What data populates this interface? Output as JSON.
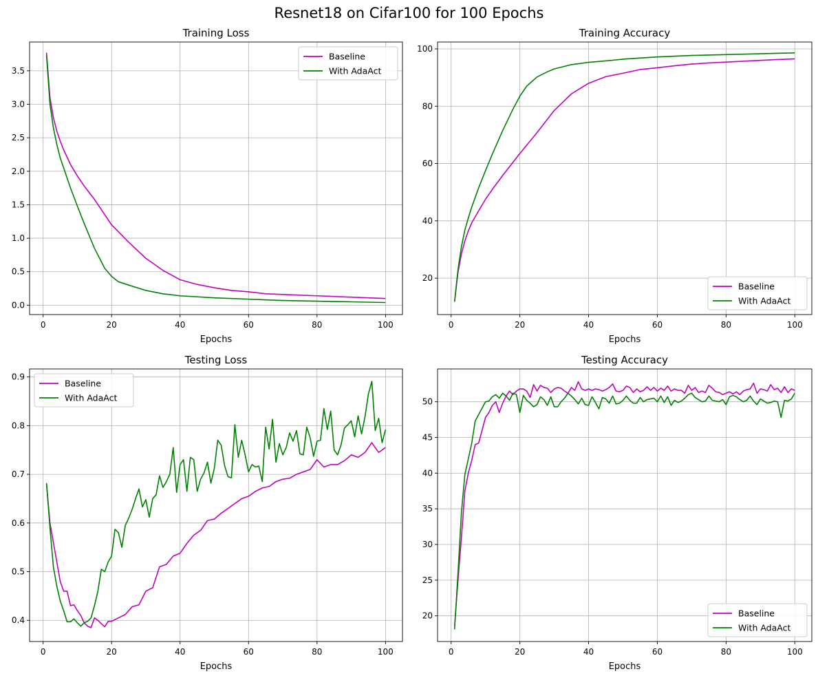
{
  "figure": {
    "title": "Resnet18 on Cifar100 for 100 Epochs"
  },
  "colors": {
    "baseline": "#bf00bf",
    "adaact": "#008000",
    "grid": "#b0b0b0",
    "axis": "#000000"
  },
  "chart_data": [
    {
      "type": "line",
      "title": "Training Loss",
      "xlabel": "Epochs",
      "ylabel": "",
      "xlim": [
        -3.95,
        104.95
      ],
      "ylim": [
        -0.14,
        3.93
      ],
      "xticks": [
        0,
        20,
        40,
        60,
        80,
        100
      ],
      "yticks": [
        0.0,
        0.5,
        1.0,
        1.5,
        2.0,
        2.5,
        3.0,
        3.5
      ],
      "ytick_labels": [
        "0.0",
        "0.5",
        "1.0",
        "1.5",
        "2.0",
        "2.5",
        "3.0",
        "3.5"
      ],
      "grid": true,
      "legend": "top-right",
      "series": [
        {
          "name": "Baseline",
          "color": "#bf00bf",
          "key": "baseline",
          "x": [
            1,
            2,
            3,
            4,
            5,
            6,
            8,
            10,
            12,
            15,
            20,
            25,
            30,
            35,
            40,
            45,
            50,
            55,
            60,
            65,
            70,
            75,
            80,
            85,
            90,
            95,
            100
          ],
          "values": [
            3.77,
            3.1,
            2.8,
            2.6,
            2.45,
            2.32,
            2.1,
            1.93,
            1.78,
            1.58,
            1.2,
            0.94,
            0.7,
            0.52,
            0.38,
            0.31,
            0.26,
            0.22,
            0.2,
            0.17,
            0.16,
            0.15,
            0.14,
            0.13,
            0.12,
            0.11,
            0.1
          ]
        },
        {
          "name": "With AdaAct",
          "color": "#008000",
          "key": "adaact",
          "x": [
            1,
            2,
            3,
            4,
            5,
            6,
            8,
            10,
            12,
            15,
            18,
            20,
            22,
            25,
            30,
            35,
            40,
            50,
            60,
            70,
            80,
            90,
            100
          ],
          "values": [
            3.73,
            3.0,
            2.65,
            2.4,
            2.2,
            2.05,
            1.75,
            1.48,
            1.22,
            0.85,
            0.55,
            0.43,
            0.35,
            0.3,
            0.22,
            0.17,
            0.14,
            0.11,
            0.09,
            0.07,
            0.06,
            0.05,
            0.04
          ]
        }
      ]
    },
    {
      "type": "line",
      "title": "Training Accuracy",
      "xlabel": "Epochs",
      "ylabel": "",
      "xlim": [
        -3.95,
        104.95
      ],
      "ylim": [
        7.3,
        102.4
      ],
      "xticks": [
        0,
        20,
        40,
        60,
        80,
        100
      ],
      "yticks": [
        20,
        40,
        60,
        80,
        100
      ],
      "ytick_labels": [
        "20",
        "40",
        "60",
        "80",
        "100"
      ],
      "grid": true,
      "legend": "bottom-right",
      "series": [
        {
          "name": "Baseline",
          "color": "#bf00bf",
          "key": "baseline",
          "x": [
            1,
            2,
            3,
            4,
            5,
            6,
            8,
            10,
            12,
            15,
            20,
            25,
            30,
            35,
            40,
            45,
            50,
            55,
            60,
            65,
            70,
            75,
            80,
            85,
            90,
            95,
            100
          ],
          "values": [
            11.8,
            22,
            28.5,
            33,
            36.5,
            39.3,
            43.5,
            47.5,
            51,
            55.8,
            63.5,
            70.8,
            78.5,
            84.3,
            88,
            90.3,
            91.5,
            92.8,
            93.4,
            94.1,
            94.7,
            95.1,
            95.4,
            95.7,
            96,
            96.3,
            96.5
          ]
        },
        {
          "name": "With AdaAct",
          "color": "#008000",
          "key": "adaact",
          "x": [
            1,
            2,
            3,
            4,
            5,
            6,
            8,
            10,
            12,
            15,
            18,
            20,
            22,
            25,
            28,
            30,
            35,
            40,
            45,
            50,
            60,
            70,
            80,
            90,
            100
          ],
          "values": [
            11.8,
            23,
            31,
            36.8,
            41,
            44.8,
            51.5,
            57.5,
            63.3,
            71.5,
            79,
            83.5,
            87,
            90.2,
            92,
            93,
            94.5,
            95.3,
            95.8,
            96.4,
            97.2,
            97.7,
            98,
            98.3,
            98.6
          ]
        }
      ]
    },
    {
      "type": "line",
      "title": "Testing Loss",
      "xlabel": "Epochs",
      "ylabel": "",
      "xlim": [
        -3.95,
        104.95
      ],
      "ylim": [
        0.3565,
        0.9165
      ],
      "xticks": [
        0,
        20,
        40,
        60,
        80,
        100
      ],
      "yticks": [
        0.4,
        0.5,
        0.6,
        0.7,
        0.8,
        0.9
      ],
      "ytick_labels": [
        "0.4",
        "0.5",
        "0.6",
        "0.7",
        "0.8",
        "0.9"
      ],
      "grid": true,
      "legend": "top-left",
      "series": [
        {
          "name": "Baseline",
          "color": "#bf00bf",
          "key": "baseline",
          "x": [
            1,
            2,
            3,
            4,
            5,
            6,
            7,
            8,
            9,
            10,
            11,
            12,
            13,
            14,
            15,
            16,
            17,
            18,
            19,
            20,
            22,
            24,
            26,
            28,
            30,
            32,
            34,
            36,
            38,
            40,
            42,
            44,
            46,
            48,
            50,
            52,
            54,
            56,
            58,
            60,
            62,
            64,
            66,
            68,
            70,
            72,
            74,
            76,
            78,
            80,
            82,
            84,
            86,
            88,
            90,
            92,
            94,
            96,
            98,
            100
          ],
          "values": [
            0.68,
            0.6,
            0.56,
            0.52,
            0.48,
            0.46,
            0.46,
            0.43,
            0.432,
            0.42,
            0.41,
            0.395,
            0.388,
            0.385,
            0.405,
            0.4,
            0.393,
            0.387,
            0.398,
            0.398,
            0.405,
            0.412,
            0.428,
            0.432,
            0.46,
            0.467,
            0.51,
            0.515,
            0.532,
            0.538,
            0.558,
            0.575,
            0.585,
            0.605,
            0.608,
            0.62,
            0.63,
            0.64,
            0.65,
            0.655,
            0.665,
            0.672,
            0.675,
            0.685,
            0.69,
            0.692,
            0.7,
            0.705,
            0.71,
            0.73,
            0.715,
            0.72,
            0.72,
            0.728,
            0.74,
            0.735,
            0.745,
            0.765,
            0.745,
            0.755
          ]
        },
        {
          "name": "With AdaAct",
          "color": "#008000",
          "key": "adaact",
          "x": [
            1,
            2,
            3,
            4,
            5,
            6,
            7,
            8,
            9,
            10,
            11,
            12,
            13,
            14,
            15,
            16,
            17,
            18,
            19,
            20,
            21,
            22,
            23,
            24,
            25,
            26,
            27,
            28,
            29,
            30,
            31,
            32,
            33,
            34,
            35,
            36,
            37,
            38,
            39,
            40,
            41,
            42,
            43,
            44,
            45,
            46,
            47,
            48,
            49,
            50,
            51,
            52,
            53,
            54,
            55,
            56,
            57,
            58,
            59,
            60,
            61,
            62,
            63,
            64,
            65,
            66,
            67,
            68,
            69,
            70,
            71,
            72,
            73,
            74,
            75,
            76,
            77,
            78,
            79,
            80,
            81,
            82,
            83,
            84,
            85,
            86,
            87,
            88,
            89,
            90,
            91,
            92,
            93,
            94,
            95,
            96,
            97,
            98,
            99,
            100
          ],
          "values": [
            0.682,
            0.59,
            0.51,
            0.47,
            0.44,
            0.42,
            0.397,
            0.397,
            0.403,
            0.395,
            0.388,
            0.395,
            0.398,
            0.405,
            0.43,
            0.46,
            0.505,
            0.5,
            0.52,
            0.532,
            0.587,
            0.58,
            0.55,
            0.595,
            0.61,
            0.628,
            0.65,
            0.67,
            0.633,
            0.648,
            0.612,
            0.65,
            0.658,
            0.697,
            0.673,
            0.685,
            0.7,
            0.755,
            0.663,
            0.72,
            0.73,
            0.665,
            0.735,
            0.73,
            0.665,
            0.69,
            0.703,
            0.725,
            0.682,
            0.712,
            0.77,
            0.76,
            0.718,
            0.695,
            0.693,
            0.802,
            0.735,
            0.77,
            0.74,
            0.705,
            0.72,
            0.715,
            0.717,
            0.685,
            0.797,
            0.752,
            0.813,
            0.725,
            0.763,
            0.74,
            0.755,
            0.785,
            0.768,
            0.79,
            0.742,
            0.74,
            0.797,
            0.775,
            0.737,
            0.768,
            0.77,
            0.835,
            0.792,
            0.83,
            0.75,
            0.74,
            0.76,
            0.795,
            0.802,
            0.81,
            0.777,
            0.82,
            0.783,
            0.818,
            0.865,
            0.891,
            0.79,
            0.815,
            0.765,
            0.792
          ]
        }
      ]
    },
    {
      "type": "line",
      "title": "Testing Accuracy",
      "xlabel": "Epochs",
      "ylabel": "",
      "xlim": [
        -3.95,
        104.95
      ],
      "ylim": [
        16.4,
        54.6
      ],
      "xticks": [
        0,
        20,
        40,
        60,
        80,
        100
      ],
      "yticks": [
        20,
        25,
        30,
        35,
        40,
        45,
        50
      ],
      "ytick_labels": [
        "20",
        "25",
        "30",
        "35",
        "40",
        "45",
        "50"
      ],
      "grid": true,
      "legend": "bottom-right",
      "series": [
        {
          "name": "Baseline",
          "color": "#bf00bf",
          "key": "baseline",
          "x": [
            1,
            2,
            3,
            4,
            5,
            6,
            7,
            8,
            9,
            10,
            11,
            12,
            13,
            14,
            15,
            16,
            17,
            18,
            19,
            20,
            21,
            22,
            23,
            24,
            25,
            26,
            27,
            28,
            29,
            30,
            31,
            32,
            33,
            34,
            35,
            36,
            37,
            38,
            39,
            40,
            41,
            42,
            43,
            44,
            45,
            46,
            47,
            48,
            49,
            50,
            51,
            52,
            53,
            54,
            55,
            56,
            57,
            58,
            59,
            60,
            61,
            62,
            63,
            64,
            65,
            66,
            67,
            68,
            69,
            70,
            71,
            72,
            73,
            74,
            75,
            76,
            77,
            78,
            79,
            80,
            81,
            82,
            83,
            84,
            85,
            86,
            87,
            88,
            89,
            90,
            91,
            92,
            93,
            94,
            95,
            96,
            97,
            98,
            99,
            100
          ],
          "values": [
            18.5,
            25,
            31,
            37.5,
            40,
            41.8,
            44,
            44.2,
            46,
            47.8,
            48.5,
            49.5,
            50,
            48.5,
            49.8,
            50.8,
            51.5,
            51,
            51.5,
            51.8,
            51.8,
            51.5,
            50.6,
            52.4,
            51.5,
            52.3,
            52,
            51.9,
            51.3,
            51.8,
            52,
            51.9,
            51.5,
            51.2,
            52,
            51.6,
            52.8,
            51.8,
            51.6,
            51.8,
            51.6,
            51.8,
            51.7,
            51.5,
            51.7,
            52,
            52.5,
            51.5,
            51.4,
            51.6,
            52.2,
            52,
            51.3,
            51.8,
            51.4,
            51.6,
            52.1,
            51.6,
            52,
            51.5,
            51.9,
            51.6,
            52.2,
            51.5,
            51.8,
            51.6,
            51.6,
            51.2,
            52.3,
            51.6,
            52,
            51.3,
            51.5,
            51.3,
            52.3,
            51.9,
            51.4,
            51.3,
            51,
            51.2,
            51.4,
            51.1,
            51.4,
            51,
            51.5,
            51.7,
            51.8,
            52.6,
            51.2,
            51.8,
            51.7,
            51.5,
            52.4,
            51.7,
            51.9,
            51.3,
            52.1,
            51.3,
            51.8,
            51.6
          ]
        },
        {
          "name": "With AdaAct",
          "color": "#008000",
          "key": "adaact",
          "x": [
            1,
            2,
            3,
            4,
            5,
            6,
            7,
            8,
            9,
            10,
            11,
            12,
            13,
            14,
            15,
            16,
            17,
            18,
            19,
            20,
            21,
            22,
            23,
            24,
            25,
            26,
            27,
            28,
            29,
            30,
            31,
            32,
            33,
            34,
            35,
            36,
            37,
            38,
            39,
            40,
            41,
            42,
            43,
            44,
            45,
            46,
            47,
            48,
            49,
            50,
            51,
            52,
            53,
            54,
            55,
            56,
            57,
            58,
            59,
            60,
            61,
            62,
            63,
            64,
            65,
            66,
            67,
            68,
            69,
            70,
            71,
            72,
            73,
            74,
            75,
            76,
            77,
            78,
            79,
            80,
            81,
            82,
            83,
            84,
            85,
            86,
            87,
            88,
            89,
            90,
            91,
            92,
            93,
            94,
            95,
            96,
            97,
            98,
            99,
            100
          ],
          "values": [
            18.1,
            26,
            34.5,
            39.8,
            42,
            44.2,
            47.3,
            48.2,
            49.1,
            50,
            50.1,
            50.7,
            51,
            50.5,
            51.2,
            50.8,
            50.2,
            51.2,
            51,
            48.5,
            50.9,
            50.2,
            49.8,
            49.3,
            49.6,
            50.7,
            50.3,
            49.5,
            50.7,
            49.3,
            49.3,
            50,
            50.5,
            51.2,
            50.8,
            50.3,
            49.7,
            50.5,
            49.6,
            49.5,
            50.7,
            49.9,
            49,
            50.6,
            50.4,
            49.8,
            50.8,
            49.7,
            49.8,
            50.2,
            50.8,
            50.2,
            49.8,
            49.8,
            50.6,
            50,
            50.3,
            50.4,
            50.5,
            50,
            50.8,
            49.9,
            50.7,
            49.5,
            50.2,
            49.9,
            50.1,
            50.5,
            51,
            51.2,
            50.6,
            50.3,
            50,
            50.1,
            50.8,
            50.2,
            50.1,
            50,
            50.3,
            49.6,
            50.7,
            50.9,
            50.7,
            50.3,
            50,
            50.2,
            50.8,
            50.1,
            49.6,
            50.4,
            50.1,
            49.8,
            49.9,
            50.1,
            50,
            47.8,
            50.2,
            50.1,
            50.4,
            51.2
          ]
        }
      ]
    }
  ]
}
